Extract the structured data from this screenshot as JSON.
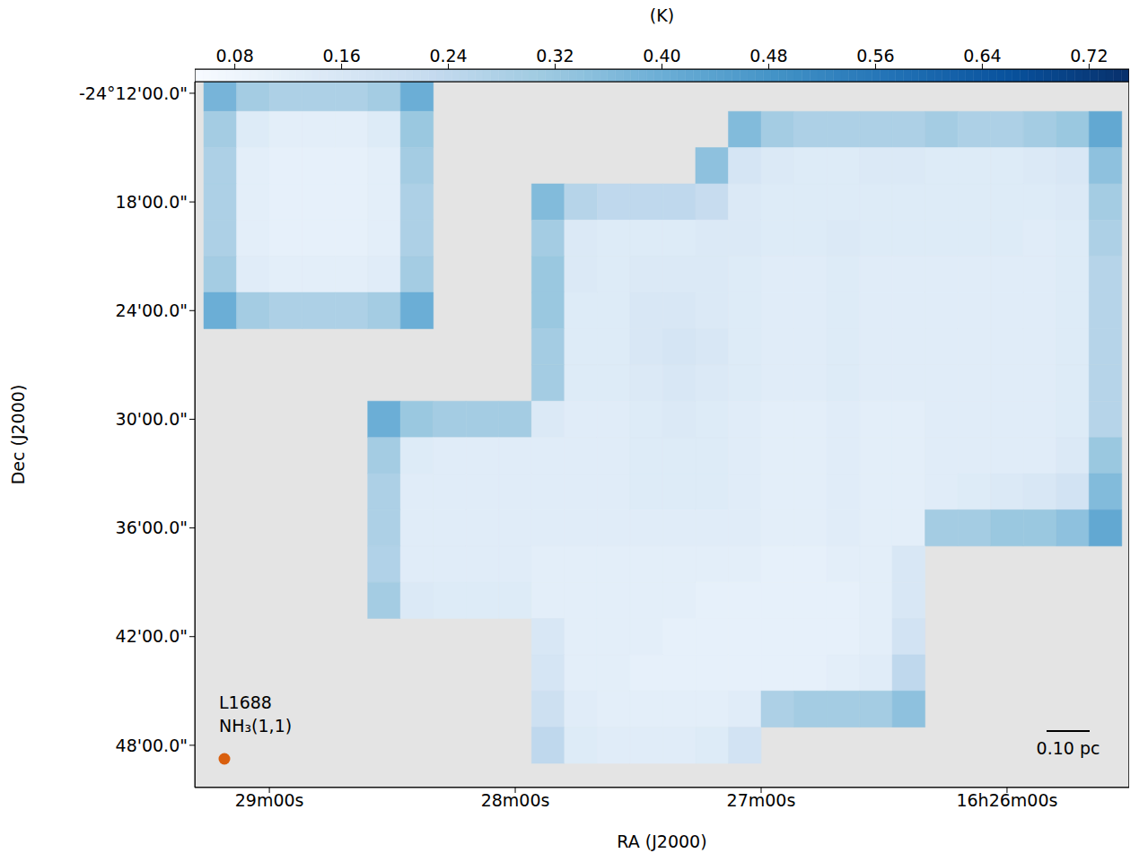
{
  "chart_data": {
    "type": "heatmap",
    "xlabel": "RA (J2000)",
    "ylabel": "Dec (J2000)",
    "xlim": [
      1758.2,
      1530.2
    ],
    "ylim": [
      -24.8389,
      -24.1893
    ],
    "xticks": [
      {
        "value": 1740,
        "label": "29m00s"
      },
      {
        "value": 1680,
        "label": "28m00s"
      },
      {
        "value": 1620,
        "label": "27m00s"
      },
      {
        "value": 1560,
        "label": "16h26m00s"
      }
    ],
    "yticks": [
      {
        "value": -24.2,
        "label": "-24°12'00.0\""
      },
      {
        "value": -24.3,
        "label": "18'00.0\""
      },
      {
        "value": -24.4,
        "label": "24'00.0\""
      },
      {
        "value": -24.5,
        "label": "30'00.0\""
      },
      {
        "value": -24.6,
        "label": "36'00.0\""
      },
      {
        "value": -24.7,
        "label": "42'00.0\""
      },
      {
        "value": -24.8,
        "label": "48'00.0\""
      }
    ],
    "x_edges": [
      1756,
      1748,
      1740,
      1732,
      1724,
      1716,
      1708,
      1700,
      1692,
      1684,
      1676,
      1668,
      1660,
      1652,
      1644,
      1636,
      1628,
      1620,
      1612,
      1604,
      1596,
      1588,
      1580,
      1572,
      1564,
      1556,
      1548,
      1540,
      1532
    ],
    "y_edges": [
      -24.1833,
      -24.2167,
      -24.25,
      -24.2833,
      -24.3167,
      -24.35,
      -24.3833,
      -24.4167,
      -24.45,
      -24.4833,
      -24.5167,
      -24.55,
      -24.5833,
      -24.6167,
      -24.65,
      -24.6833,
      -24.7167,
      -24.75,
      -24.7833,
      -24.8167
    ],
    "cells": [
      [
        0.38,
        0.3,
        0.28,
        0.28,
        0.28,
        0.3,
        0.4,
        null,
        null,
        null,
        null,
        null,
        null,
        null,
        null,
        null,
        null,
        null,
        null,
        null,
        null,
        null,
        null,
        null,
        null,
        null,
        null,
        null
      ],
      [
        0.3,
        0.14,
        0.12,
        0.12,
        0.12,
        0.14,
        0.32,
        null,
        null,
        null,
        null,
        null,
        null,
        null,
        null,
        null,
        0.36,
        0.3,
        0.28,
        0.28,
        0.28,
        0.28,
        0.3,
        0.28,
        0.28,
        0.3,
        0.32,
        0.42
      ],
      [
        0.28,
        0.12,
        0.11,
        0.11,
        0.11,
        0.12,
        0.3,
        null,
        null,
        null,
        null,
        null,
        null,
        null,
        null,
        0.34,
        0.17,
        0.15,
        0.14,
        0.14,
        0.15,
        0.15,
        0.14,
        0.14,
        0.14,
        0.15,
        0.16,
        0.34
      ],
      [
        0.28,
        0.12,
        0.11,
        0.11,
        0.11,
        0.12,
        0.28,
        null,
        null,
        null,
        0.36,
        0.26,
        0.24,
        0.24,
        0.24,
        0.22,
        0.15,
        0.14,
        0.14,
        0.14,
        0.14,
        0.14,
        0.14,
        0.14,
        0.14,
        0.14,
        0.15,
        0.3
      ],
      [
        0.28,
        0.12,
        0.11,
        0.11,
        0.11,
        0.12,
        0.28,
        null,
        null,
        null,
        0.3,
        0.15,
        0.14,
        0.14,
        0.14,
        0.15,
        0.15,
        0.14,
        0.14,
        0.15,
        0.14,
        0.14,
        0.14,
        0.14,
        0.14,
        0.13,
        0.14,
        0.28
      ],
      [
        0.3,
        0.13,
        0.12,
        0.12,
        0.12,
        0.13,
        0.3,
        null,
        null,
        null,
        0.32,
        0.15,
        0.14,
        0.15,
        0.15,
        0.15,
        0.14,
        0.13,
        0.13,
        0.14,
        0.13,
        0.13,
        0.13,
        0.13,
        0.13,
        0.13,
        0.14,
        0.26
      ],
      [
        0.4,
        0.3,
        0.28,
        0.28,
        0.28,
        0.3,
        0.4,
        null,
        null,
        null,
        0.32,
        0.14,
        0.14,
        0.16,
        0.16,
        0.15,
        0.14,
        0.13,
        0.13,
        0.14,
        0.13,
        0.13,
        0.13,
        0.13,
        0.13,
        0.13,
        0.14,
        0.26
      ],
      [
        null,
        null,
        null,
        null,
        null,
        null,
        null,
        null,
        null,
        null,
        0.3,
        0.14,
        0.14,
        0.16,
        0.17,
        0.16,
        0.14,
        0.13,
        0.13,
        0.14,
        0.13,
        0.13,
        0.13,
        0.13,
        0.13,
        0.13,
        0.14,
        0.26
      ],
      [
        null,
        null,
        null,
        null,
        null,
        null,
        null,
        null,
        null,
        null,
        0.3,
        0.14,
        0.14,
        0.15,
        0.16,
        0.15,
        0.14,
        0.13,
        0.13,
        0.14,
        0.13,
        0.13,
        0.13,
        0.13,
        0.13,
        0.13,
        0.14,
        0.26
      ],
      [
        null,
        null,
        null,
        null,
        null,
        0.4,
        0.32,
        0.3,
        0.3,
        0.3,
        0.15,
        0.13,
        0.13,
        0.14,
        0.15,
        0.14,
        0.13,
        0.12,
        0.12,
        0.13,
        0.12,
        0.12,
        0.13,
        0.13,
        0.13,
        0.13,
        0.14,
        0.26
      ],
      [
        null,
        null,
        null,
        null,
        null,
        0.3,
        0.14,
        0.13,
        0.13,
        0.13,
        0.13,
        0.13,
        0.13,
        0.14,
        0.14,
        0.14,
        0.13,
        0.12,
        0.12,
        0.13,
        0.12,
        0.12,
        0.13,
        0.13,
        0.13,
        0.13,
        0.15,
        0.32
      ],
      [
        null,
        null,
        null,
        null,
        null,
        0.28,
        0.13,
        0.13,
        0.13,
        0.13,
        0.13,
        0.13,
        0.13,
        0.14,
        0.14,
        0.14,
        0.13,
        0.12,
        0.12,
        0.13,
        0.12,
        0.12,
        0.13,
        0.14,
        0.15,
        0.16,
        0.18,
        0.36
      ],
      [
        null,
        null,
        null,
        null,
        null,
        0.28,
        0.13,
        0.13,
        0.13,
        0.13,
        0.13,
        0.13,
        0.13,
        0.13,
        0.13,
        0.13,
        0.13,
        0.12,
        0.12,
        0.13,
        0.12,
        0.12,
        0.3,
        0.3,
        0.32,
        0.32,
        0.34,
        0.42
      ],
      [
        null,
        null,
        null,
        null,
        null,
        0.27,
        0.13,
        0.13,
        0.13,
        0.13,
        0.12,
        0.12,
        0.12,
        0.12,
        0.12,
        0.12,
        0.12,
        0.11,
        0.11,
        0.12,
        0.12,
        0.16,
        null,
        null,
        null,
        null,
        null,
        null
      ],
      [
        null,
        null,
        null,
        null,
        null,
        0.3,
        0.15,
        0.14,
        0.14,
        0.14,
        0.12,
        0.12,
        0.12,
        0.12,
        0.12,
        0.11,
        0.11,
        0.11,
        0.11,
        0.11,
        0.12,
        0.16,
        null,
        null,
        null,
        null,
        null,
        null
      ],
      [
        null,
        null,
        null,
        null,
        null,
        null,
        null,
        null,
        null,
        null,
        0.16,
        0.12,
        0.12,
        0.12,
        0.11,
        0.11,
        0.11,
        0.11,
        0.11,
        0.11,
        0.12,
        0.18,
        null,
        null,
        null,
        null,
        null,
        null
      ],
      [
        null,
        null,
        null,
        null,
        null,
        null,
        null,
        null,
        null,
        null,
        0.17,
        0.12,
        0.12,
        0.11,
        0.11,
        0.11,
        0.11,
        0.11,
        0.11,
        0.12,
        0.13,
        0.24,
        null,
        null,
        null,
        null,
        null,
        null
      ],
      [
        null,
        null,
        null,
        null,
        null,
        null,
        null,
        null,
        null,
        null,
        0.2,
        0.13,
        0.12,
        0.12,
        0.12,
        0.12,
        0.13,
        0.28,
        0.3,
        0.3,
        0.3,
        0.34,
        null,
        null,
        null,
        null,
        null,
        null
      ],
      [
        null,
        null,
        null,
        null,
        null,
        null,
        null,
        null,
        null,
        null,
        0.24,
        0.14,
        0.13,
        0.13,
        0.13,
        0.14,
        0.18,
        null,
        null,
        null,
        null,
        null,
        null,
        null,
        null,
        null,
        null,
        null
      ]
    ],
    "colorbar": {
      "label": "(K)",
      "range": [
        0.05,
        0.75
      ],
      "ticks": [
        0.08,
        0.16,
        0.24,
        0.32,
        {
          "value": 0.4,
          "label": "0.40"
        },
        0.48,
        0.56,
        0.64,
        0.72
      ]
    },
    "annotations": [
      "L1688",
      "NH₃(1,1)",
      "0.10 pc"
    ]
  }
}
